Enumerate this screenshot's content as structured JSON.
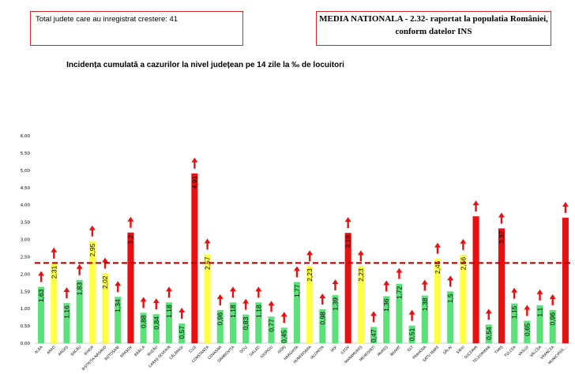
{
  "header": {
    "left_box": "Total judete care au inregistrat crestere: 41",
    "right_box_line1": "MEDIA NATIONALA - 2.32-  raportat la populatia României,",
    "right_box_line2": "conform datelor INS"
  },
  "chart_data": {
    "type": "bar",
    "title": "Incidența cumulată a cazurilor la nivel județean pe 14 zile la ‰ de locuitori",
    "categories": [
      "ALBA",
      "ARAD",
      "ARGEȘ",
      "BACĂU",
      "BIHOR",
      "BISTRIȚA-NĂSĂUD",
      "BOTOȘANI",
      "BRAȘOV",
      "BRĂILA",
      "BUZĂU",
      "CARAȘ-SEVERIN",
      "CĂLĂRAȘI",
      "CLUJ",
      "CONSTANȚA",
      "COVASNA",
      "DÂMBOVIȚA",
      "DOLJ",
      "GALAȚI",
      "GIURGIU",
      "GORJ",
      "HARGHITA",
      "HUNEDOARA",
      "IALOMIȚA",
      "IAȘI",
      "ILFOV",
      "MARAMUREȘ",
      "MEHEDINȚI",
      "MUREȘ",
      "NEAMȚ",
      "OLT",
      "PRAHOVA",
      "SATU MARE",
      "SĂLAJ",
      "SIBIU",
      "SUCEAVA",
      "TELEORMAN",
      "TIMIȘ",
      "TULCEA",
      "VASLUI",
      "VÂLCEA",
      "VRANCEA",
      "MUNICIPIUL..."
    ],
    "values": [
      1.63,
      2.31,
      1.16,
      1.83,
      2.95,
      2.02,
      1.34,
      3.2,
      0.88,
      0.84,
      1.18,
      0.57,
      4.91,
      2.57,
      0.96,
      1.18,
      0.83,
      1.18,
      0.77,
      0.45,
      1.77,
      2.23,
      0.98,
      1.39,
      3.19,
      2.23,
      0.47,
      1.36,
      1.72,
      0.51,
      1.38,
      2.45,
      1.5,
      2.56,
      3.67,
      0.54,
      3.32,
      1.15,
      0.65,
      1.1,
      0.96,
      3.63
    ],
    "value_labels": [
      "1,63",
      "2,31",
      "1,16",
      "1,83",
      "2,95",
      "2,02",
      "1,34",
      "3,2",
      "0,88",
      "0,84",
      "1,18",
      "0,57",
      "4,91",
      "2,57",
      "0,96",
      "1,18",
      "0,83",
      "1,18",
      "0,77",
      "0,45",
      "1,77",
      "2,23",
      "0,98",
      "1,39",
      "3,19",
      "2,23",
      "0,47",
      "1,36",
      "1,72",
      "0,51",
      "1,38",
      "2,45",
      "1,5",
      "2,56",
      "3,67",
      "0,54",
      "3,32",
      "1,15",
      "0,65",
      "1,1",
      "0,96",
      "3,63"
    ],
    "show_label": [
      true,
      true,
      true,
      true,
      true,
      true,
      true,
      true,
      true,
      true,
      true,
      true,
      true,
      true,
      true,
      true,
      true,
      true,
      true,
      true,
      true,
      true,
      true,
      true,
      true,
      true,
      true,
      true,
      true,
      true,
      true,
      true,
      true,
      true,
      false,
      true,
      true,
      true,
      true,
      true,
      true,
      false
    ],
    "bar_colors": {
      "low": "#5ce07a",
      "mid": "#ffff44",
      "high": "#e81010"
    },
    "thresholds": {
      "mid": 1.9,
      "high": 3.0
    },
    "arrows": "increase",
    "arrow_color": "#e81010",
    "reference_line": {
      "value": 2.32,
      "color": "#c00000",
      "style": "dashed"
    },
    "ylim": [
      0,
      6
    ],
    "yticks": [
      "0,00",
      "0,50",
      "1,00",
      "1,50",
      "2,00",
      "2,50",
      "3,00",
      "3,50",
      "4,00",
      "4,50",
      "5,00",
      "5,50",
      "6,00"
    ],
    "xlabel": "",
    "ylabel": "",
    "grid": false,
    "legend": "none"
  }
}
